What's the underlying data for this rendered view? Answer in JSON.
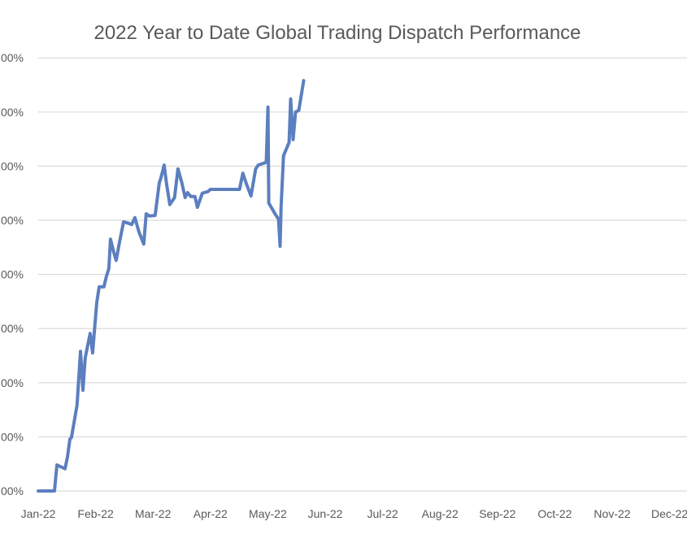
{
  "chart_data": {
    "type": "line",
    "title": "2022 Year to Date Global Trading Dispatch Performance",
    "xlabel": "",
    "ylabel": "",
    "x_tick_labels": [
      "Jan-22",
      "Feb-22",
      "Mar-22",
      "Apr-22",
      "May-22",
      "Jun-22",
      "Jul-22",
      "Aug-22",
      "Sep-22",
      "Oct-22",
      "Nov-22",
      "Dec-22"
    ],
    "y_tick_labels": [
      "00%",
      "00%",
      "00%",
      "00%",
      "00%",
      "00%",
      "00%",
      "00%",
      "00%"
    ],
    "y_note": "y values expressed in gridline steps (0 = bottom gridline, 8 = top); tick label prefixes are cropped",
    "xlim_days": [
      0,
      334.4
    ],
    "ylim": [
      0,
      8
    ],
    "grid": true,
    "legend": "none",
    "color": "#5b7fbf",
    "series": [
      {
        "name": "Dispatch Performance",
        "x_day": [
          0,
          8.6,
          9.9,
          14.2,
          15.5,
          16.8,
          17.6,
          20.6,
          22.4,
          23.7,
          24.9,
          27.5,
          28.8,
          31.0,
          32.3,
          34.8,
          36.1,
          37.4,
          38.3,
          40.0,
          41.3,
          43.0,
          45.2,
          47.3,
          49.5,
          51.2,
          53.3,
          55.9,
          57.2,
          58.9,
          61.9,
          64.1,
          64.9,
          66.7,
          67.9,
          69.7,
          72.2,
          74.0,
          76.1,
          77.8,
          79.1,
          80.8,
          83.0,
          84.3,
          86.9,
          89.9,
          91.2,
          106.6,
          108.4,
          110.5,
          112.7,
          115.2,
          116.5,
          120.8,
          121.7,
          122.1,
          125.6,
          127.3,
          128.1,
          128.6,
          129.9,
          132.9,
          133.7,
          135.0,
          136.3,
          138.0,
          140.6
        ],
        "values": [
          0,
          0,
          0.48,
          0.41,
          0.63,
          0.96,
          0.99,
          1.59,
          2.58,
          1.86,
          2.46,
          2.91,
          2.55,
          3.48,
          3.77,
          3.77,
          3.96,
          4.11,
          4.65,
          4.41,
          4.26,
          4.59,
          4.97,
          4.95,
          4.92,
          5.05,
          4.79,
          4.56,
          5.12,
          5.08,
          5.09,
          5.69,
          5.77,
          6.02,
          5.69,
          5.29,
          5.42,
          5.95,
          5.69,
          5.42,
          5.51,
          5.44,
          5.44,
          5.24,
          5.5,
          5.53,
          5.57,
          5.57,
          5.87,
          5.65,
          5.45,
          5.95,
          6.02,
          6.07,
          7.09,
          5.32,
          5.11,
          5.02,
          4.52,
          5.23,
          6.19,
          6.44,
          7.24,
          6.49,
          7.0,
          7.03,
          7.58
        ]
      }
    ]
  }
}
